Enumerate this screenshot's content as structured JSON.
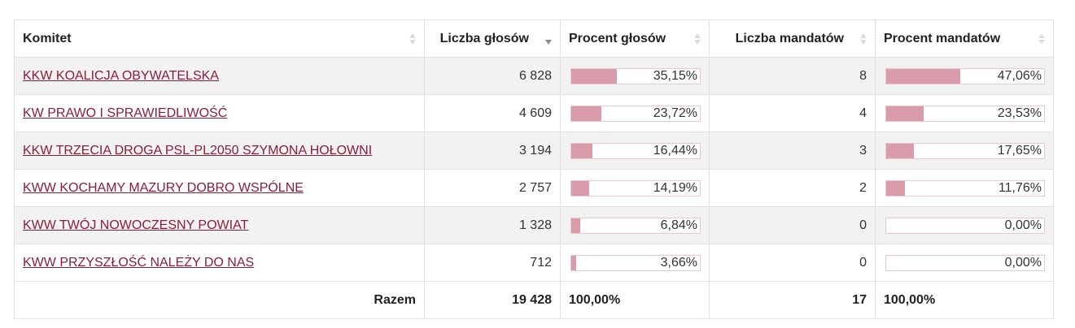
{
  "table": {
    "headers": [
      "Komitet",
      "Liczba głosów",
      "Procent głosów",
      "Liczba mandatów",
      "Procent mandatów"
    ],
    "sorted_column": "Liczba głosów",
    "sort_direction": "descending",
    "rows": [
      {
        "name": "KKW KOALICJA OBYWATELSKA",
        "votes": "6 828",
        "votes_pct": "35,15%",
        "votes_fraction": 0.3515,
        "seats": "8",
        "seats_pct": "47,06%",
        "seats_fraction": 0.4706
      },
      {
        "name": "KW PRAWO I SPRAWIEDLIWOŚĆ",
        "votes": "4 609",
        "votes_pct": "23,72%",
        "votes_fraction": 0.2372,
        "seats": "4",
        "seats_pct": "23,53%",
        "seats_fraction": 0.2353
      },
      {
        "name": "KKW TRZECIA DROGA PSL-PL2050 SZYMONA HOŁOWNI",
        "votes": "3 194",
        "votes_pct": "16,44%",
        "votes_fraction": 0.1644,
        "seats": "3",
        "seats_pct": "17,65%",
        "seats_fraction": 0.1765
      },
      {
        "name": "KWW KOCHAMY MAZURY DOBRO WSPÓLNE",
        "votes": "2 757",
        "votes_pct": "14,19%",
        "votes_fraction": 0.1419,
        "seats": "2",
        "seats_pct": "11,76%",
        "seats_fraction": 0.1176
      },
      {
        "name": "KWW TWÓJ NOWOCZESNY POWIAT",
        "votes": "1 328",
        "votes_pct": "6,84%",
        "votes_fraction": 0.0684,
        "seats": "0",
        "seats_pct": "0,00%",
        "seats_fraction": 0.0
      },
      {
        "name": "KWW PRZYSZŁOŚĆ NALEŻY DO NAS",
        "votes": "712",
        "votes_pct": "3,66%",
        "votes_fraction": 0.0366,
        "seats": "0",
        "seats_pct": "0,00%",
        "seats_fraction": 0.0
      }
    ],
    "footer": {
      "label": "Razem",
      "votes": "19 428",
      "votes_pct": "100,00%",
      "seats": "17",
      "seats_pct": "100,00%"
    }
  },
  "colors": {
    "link": "#8a1d39",
    "bar_fill": "#d99cab",
    "bar_border": "#e8c7cf",
    "row_stripe": "#f2f2f2"
  }
}
